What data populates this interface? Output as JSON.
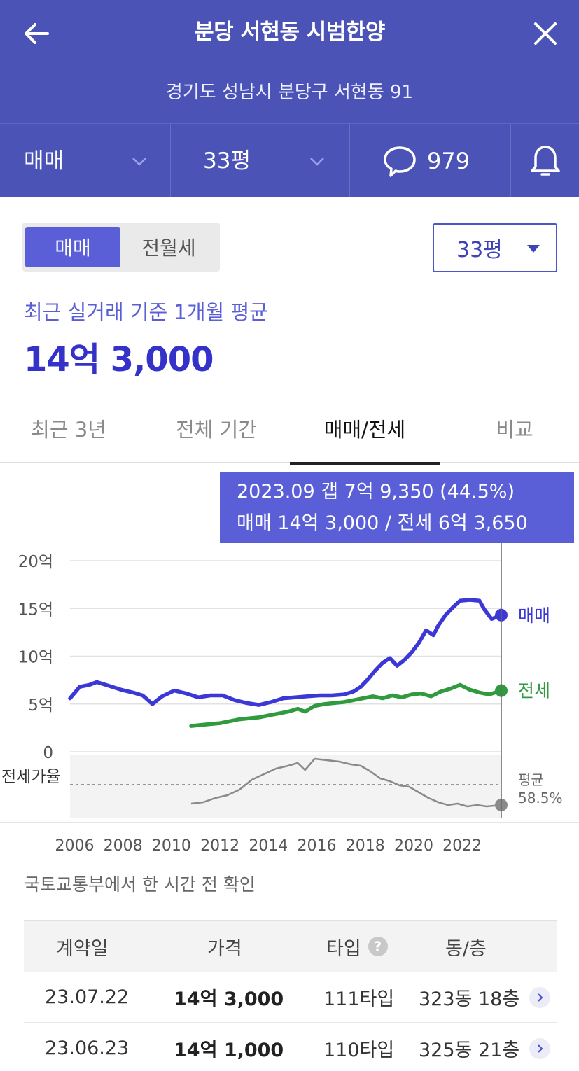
{
  "header": {
    "title": "분당 서현동 시범한양",
    "address": "경기도 성남시 분당구 서현동 91",
    "trade_type": "매매",
    "size": "33평",
    "comment_count": "979"
  },
  "segment": {
    "active": "매매",
    "inactive": "전월세"
  },
  "size_select": {
    "value": "33평"
  },
  "summary": {
    "label": "최근 실거래 기준 1개월 평균",
    "price": "14억 3,000"
  },
  "tabs": [
    "최근 3년",
    "전체 기간",
    "매매/전세",
    "비교"
  ],
  "tooltip": {
    "line1": "2023.09  갭 7억 9,350 (44.5%)",
    "line2": "매매 14억 3,000 / 전세 6억 3,650"
  },
  "chart_data": {
    "type": "line",
    "y_ticks": [
      "20억",
      "15억",
      "10억",
      "5억",
      "0"
    ],
    "ylim": [
      0,
      20
    ],
    "x_ticks": [
      "2006",
      "2008",
      "2010",
      "2012",
      "2014",
      "2016",
      "2018",
      "2020",
      "2022"
    ],
    "xlim": [
      2005.9,
      2023.7
    ],
    "series": [
      {
        "name": "매매",
        "color": "#3c38d6",
        "x": [
          2005.9,
          2006.3,
          2006.7,
          2007.0,
          2007.5,
          2008.0,
          2008.5,
          2008.9,
          2009.3,
          2009.7,
          2010.2,
          2010.7,
          2011.2,
          2011.7,
          2012.2,
          2012.7,
          2013.2,
          2013.7,
          2014.2,
          2014.7,
          2015.2,
          2015.7,
          2016.2,
          2016.7,
          2017.2,
          2017.6,
          2017.9,
          2018.2,
          2018.5,
          2018.8,
          2019.1,
          2019.4,
          2019.7,
          2020.0,
          2020.3,
          2020.6,
          2020.9,
          2021.1,
          2021.4,
          2021.7,
          2022.0,
          2022.4,
          2022.8,
          2023.0,
          2023.3,
          2023.7
        ],
        "values": [
          5.6,
          6.8,
          7.0,
          7.3,
          6.9,
          6.5,
          6.2,
          5.9,
          5.0,
          5.8,
          6.4,
          6.1,
          5.7,
          5.9,
          5.9,
          5.4,
          5.1,
          4.9,
          5.2,
          5.6,
          5.7,
          5.8,
          5.9,
          5.9,
          6.0,
          6.3,
          6.8,
          7.6,
          8.5,
          9.3,
          9.8,
          9.0,
          9.6,
          10.4,
          11.4,
          12.7,
          12.2,
          13.2,
          14.3,
          15.1,
          15.8,
          15.9,
          15.8,
          14.9,
          13.9,
          14.3
        ]
      },
      {
        "name": "전세",
        "color": "#2f9b3e",
        "x": [
          2010.9,
          2011.3,
          2011.7,
          2012.1,
          2012.5,
          2012.9,
          2013.3,
          2013.7,
          2014.1,
          2014.5,
          2014.9,
          2015.3,
          2015.6,
          2016.0,
          2016.4,
          2016.8,
          2017.2,
          2017.6,
          2018.0,
          2018.4,
          2018.8,
          2019.2,
          2019.6,
          2020.0,
          2020.4,
          2020.8,
          2021.2,
          2021.6,
          2022.0,
          2022.4,
          2022.8,
          2023.2,
          2023.7
        ],
        "values": [
          2.7,
          2.8,
          2.9,
          3.0,
          3.2,
          3.4,
          3.5,
          3.6,
          3.8,
          4.0,
          4.2,
          4.5,
          4.2,
          4.8,
          5.0,
          5.1,
          5.2,
          5.4,
          5.6,
          5.8,
          5.6,
          5.9,
          5.7,
          6.0,
          6.1,
          5.8,
          6.3,
          6.6,
          7.0,
          6.5,
          6.2,
          6.0,
          6.4
        ]
      }
    ],
    "ratio": {
      "label": "전세가율",
      "avg_label": "평균",
      "avg_value": "58.5%",
      "avg": 58.5,
      "ylim": [
        35,
        80
      ],
      "x": [
        2010.9,
        2011.4,
        2011.9,
        2012.4,
        2012.9,
        2013.4,
        2013.9,
        2014.4,
        2014.9,
        2015.3,
        2015.6,
        2016.0,
        2016.5,
        2017.0,
        2017.5,
        2017.9,
        2018.3,
        2018.7,
        2019.1,
        2019.5,
        2019.9,
        2020.3,
        2020.7,
        2021.1,
        2021.5,
        2021.9,
        2022.3,
        2022.7,
        2023.1,
        2023.7
      ],
      "values": [
        45,
        46,
        49,
        51,
        55,
        62,
        66,
        70,
        72,
        74,
        69,
        77,
        76,
        75,
        73,
        72,
        68,
        63,
        61,
        58,
        57,
        53,
        49,
        46,
        44,
        45,
        43,
        44,
        43,
        44
      ]
    }
  },
  "source_note": "국토교통부에서 한 시간 전 확인",
  "table": {
    "headers": [
      "계약일",
      "가격",
      "타입",
      "동/층"
    ],
    "rows": [
      {
        "date": "23.07.22",
        "price": "14억 3,000",
        "type": "111타입",
        "unit": "323동 18층"
      },
      {
        "date": "23.06.23",
        "price": "14억 1,000",
        "type": "110타입",
        "unit": "325동 21층"
      }
    ]
  }
}
